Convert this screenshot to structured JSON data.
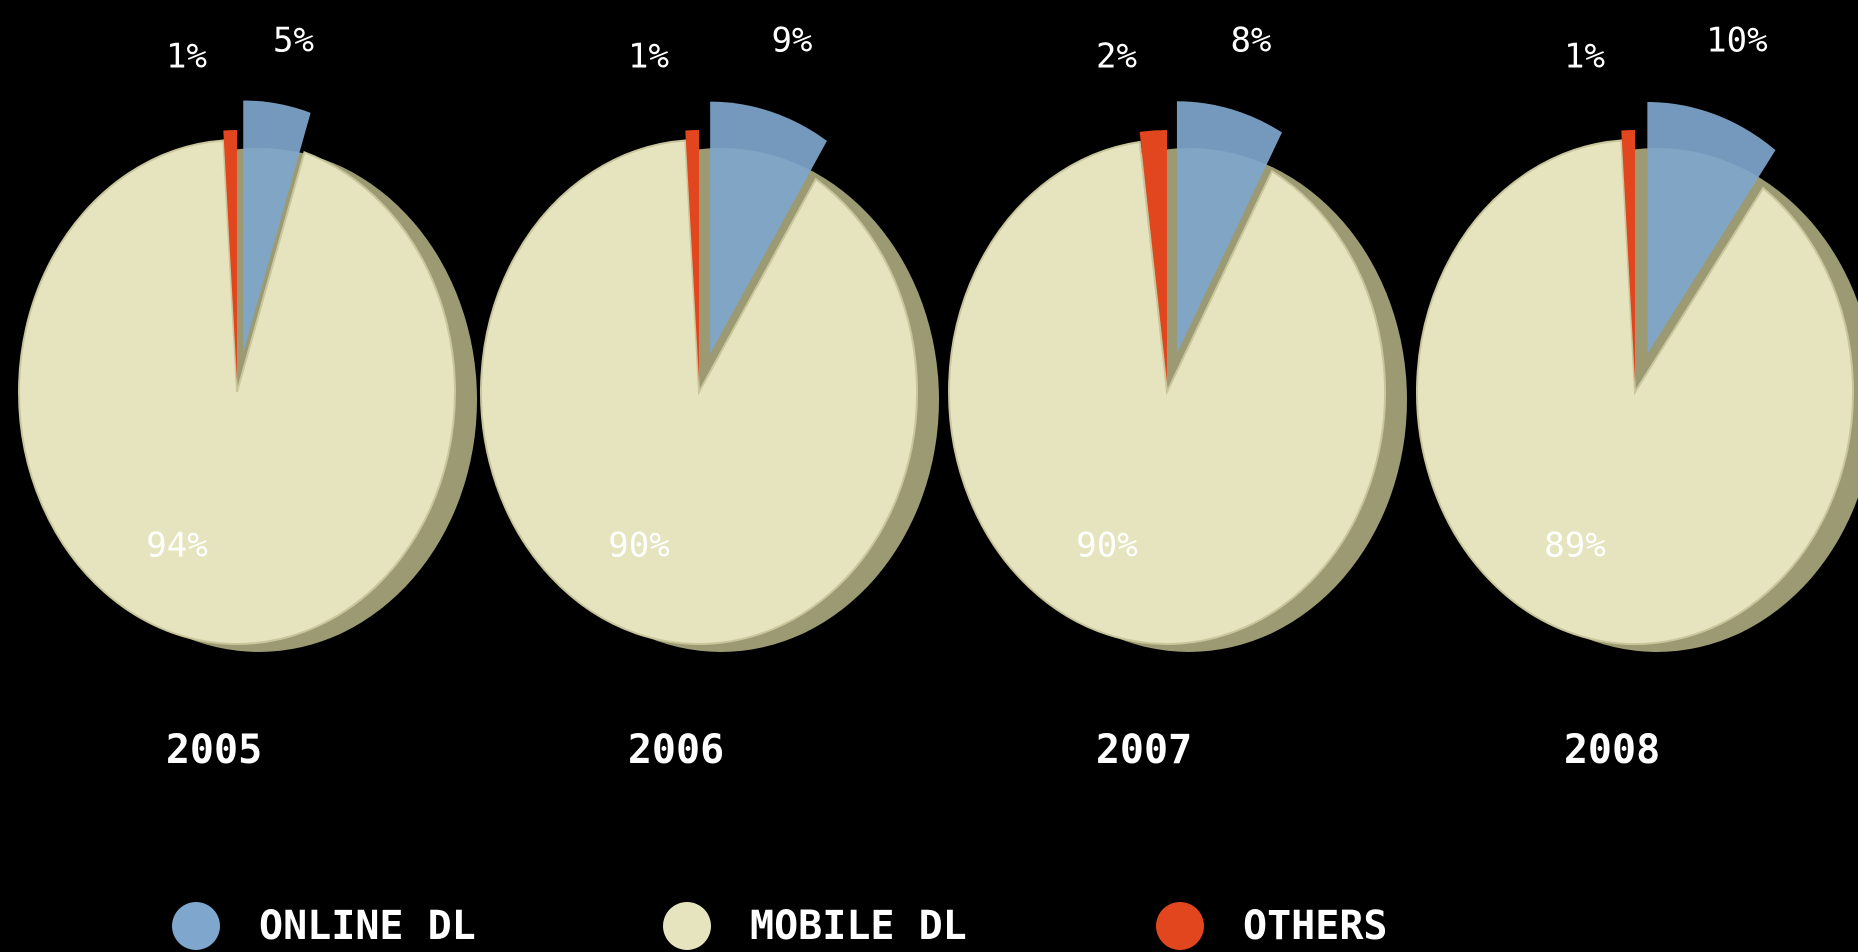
{
  "chart_data": [
    {
      "type": "pie",
      "title": "2005",
      "values": [
        5,
        94,
        1
      ],
      "value_labels": [
        "5%",
        "94%",
        "1%"
      ]
    },
    {
      "type": "pie",
      "title": "2006",
      "values": [
        9,
        90,
        1
      ],
      "value_labels": [
        "9%",
        "90%",
        "1%"
      ]
    },
    {
      "type": "pie",
      "title": "2007",
      "values": [
        8,
        90,
        2
      ],
      "value_labels": [
        "8%",
        "90%",
        "2%"
      ]
    },
    {
      "type": "pie",
      "title": "2008",
      "values": [
        10,
        89,
        1
      ],
      "value_labels": [
        "10%",
        "89%",
        "1%"
      ]
    }
  ],
  "legend": {
    "labels": [
      "ONLINE DL",
      "MOBILE DL",
      "OTHERS"
    ],
    "colors": [
      "#7fa6cc",
      "#e6e4bf",
      "#e2461e"
    ]
  }
}
